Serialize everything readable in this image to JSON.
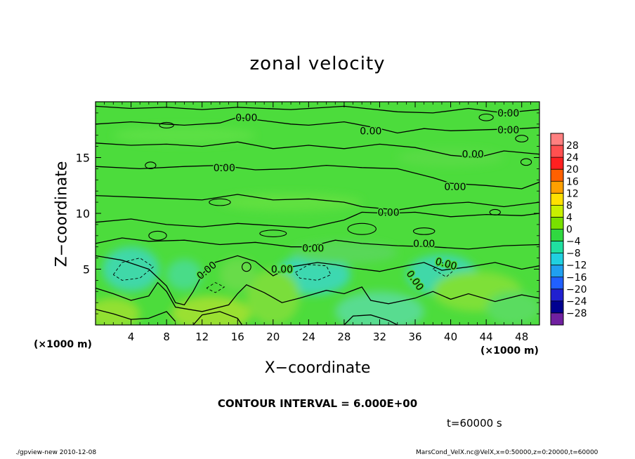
{
  "chart_data": {
    "type": "heatmap",
    "title": "zonal velocity",
    "xlabel": "X−coordinate",
    "ylabel": "Z−coordinate",
    "x_unit": "(×1000 m)",
    "y_unit": "(×1000 m)",
    "xlim": [
      0,
      50
    ],
    "ylim": [
      0,
      20
    ],
    "x_ticks": [
      "4",
      "8",
      "12",
      "16",
      "20",
      "24",
      "28",
      "32",
      "36",
      "40",
      "44",
      "48"
    ],
    "y_ticks": [
      "5",
      "10",
      "15"
    ],
    "contour_labels": [
      "0.00",
      "0.00",
      "0.00",
      "0.00",
      "0.00",
      "0.00",
      "0.00",
      "0.00",
      "0.00",
      "0.00",
      "0.00",
      "0.00",
      "0.00",
      "0.00"
    ],
    "colorbar": {
      "levels": [
        "28",
        "24",
        "20",
        "16",
        "12",
        "8",
        "4",
        "0",
        "−4",
        "−8",
        "−12",
        "−16",
        "−20",
        "−24",
        "−28"
      ],
      "colors": [
        "#ff8080",
        "#ff5050",
        "#ff2020",
        "#ff6000",
        "#ffa000",
        "#ffe000",
        "#c8f000",
        "#78e000",
        "#30d840",
        "#20e0a0",
        "#20d0e0",
        "#20a0f0",
        "#2060ff",
        "#2020d0",
        "#000090",
        "#7020a0"
      ]
    },
    "contour_interval": "CONTOUR INTERVAL = 6.000E+00",
    "time": "t=60000 s"
  },
  "footer": {
    "left": "./gpview-new  2010-12-08",
    "right": "MarsCond_VelX.nc@VelX,x=0:50000,z=0:20000,t=60000"
  },
  "colors": {
    "field_base": "#4cdc3c",
    "field_weak_neg": "#40d890",
    "field_pos": "#8fe030"
  }
}
